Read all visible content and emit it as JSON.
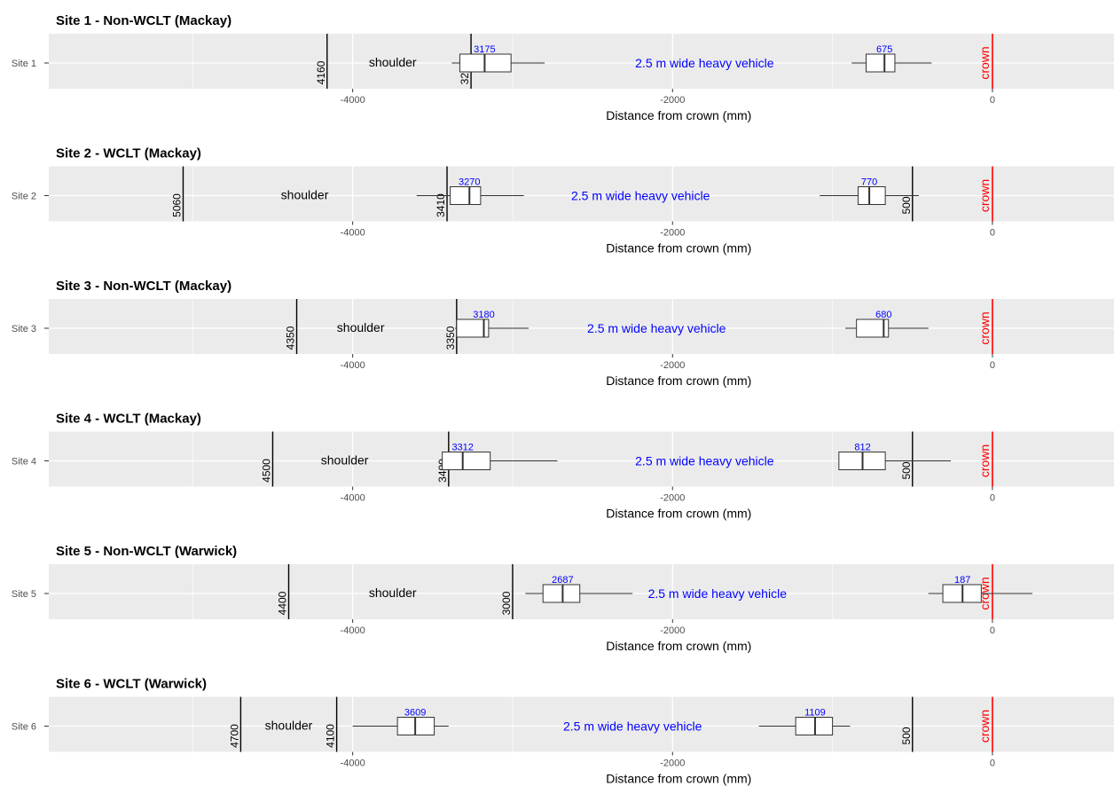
{
  "chart_data": {
    "type": "boxplot",
    "x_axis": {
      "label": "Distance from crown (mm)",
      "ticks": [
        -4000,
        -2000,
        0
      ],
      "tick_labels": [
        "-4000",
        "-2000",
        "0"
      ],
      "xlim": [
        -5900,
        760
      ],
      "grid": true
    },
    "crown_label": "crown",
    "crown_x": 0,
    "shoulder_label": "shoulder",
    "vehicle_label": "2.5 m wide heavy vehicle",
    "colors": {
      "panel": "#ebebeb",
      "grid": "#ffffff",
      "crown": "#ff0000",
      "annotation": "#0000ff",
      "text": "#000000",
      "axis_text": "#4d4d4d"
    },
    "panels": [
      {
        "title": "Site 1 - Non-WCLT (Mackay)",
        "site": "Site 1",
        "boxes": [
          {
            "label": "3175",
            "min": -3380,
            "q1": -3330,
            "median": -3175,
            "q3": -3010,
            "max": -2800
          },
          {
            "label": "675",
            "min": -880,
            "q1": -790,
            "median": -675,
            "q3": -610,
            "max": -380
          }
        ],
        "markers": [
          {
            "x": -4160,
            "label": "4160"
          },
          {
            "x": -3260,
            "label": "3260"
          }
        ],
        "shoulder_x": -3750,
        "vehicle_x": -1800
      },
      {
        "title": "Site 2 - WCLT (Mackay)",
        "site": "Site 2",
        "boxes": [
          {
            "label": "3270",
            "min": -3600,
            "q1": -3390,
            "median": -3270,
            "q3": -3200,
            "max": -2930
          },
          {
            "label": "770",
            "min": -1080,
            "q1": -840,
            "median": -770,
            "q3": -670,
            "max": -460
          }
        ],
        "markers": [
          {
            "x": -5060,
            "label": "5060"
          },
          {
            "x": -3410,
            "label": "3410"
          },
          {
            "x": -500,
            "label": "500"
          }
        ],
        "shoulder_x": -4300,
        "vehicle_x": -2200
      },
      {
        "title": "Site 3 - Non-WCLT (Mackay)",
        "site": "Site 3",
        "boxes": [
          {
            "label": "3180",
            "min": -3360,
            "q1": -3350,
            "median": -3180,
            "q3": -3150,
            "max": -2900
          },
          {
            "label": "680",
            "min": -920,
            "q1": -850,
            "median": -680,
            "q3": -650,
            "max": -400
          }
        ],
        "markers": [
          {
            "x": -4350,
            "label": "4350"
          },
          {
            "x": -3350,
            "label": "3350"
          }
        ],
        "shoulder_x": -3950,
        "vehicle_x": -2100
      },
      {
        "title": "Site 4 - WCLT (Mackay)",
        "site": "Site 4",
        "boxes": [
          {
            "label": "3312",
            "min": -3440,
            "q1": -3440,
            "median": -3312,
            "q3": -3140,
            "max": -2720
          },
          {
            "label": "812",
            "min": -960,
            "q1": -960,
            "median": -812,
            "q3": -670,
            "max": -260
          }
        ],
        "markers": [
          {
            "x": -4500,
            "label": "4500"
          },
          {
            "x": -3400,
            "label": "3400"
          },
          {
            "x": -500,
            "label": "500"
          }
        ],
        "shoulder_x": -4050,
        "vehicle_x": -1800
      },
      {
        "title": "Site 5 - Non-WCLT (Warwick)",
        "site": "Site 5",
        "boxes": [
          {
            "label": "2687",
            "min": -2920,
            "q1": -2810,
            "median": -2687,
            "q3": -2580,
            "max": -2250
          },
          {
            "label": "187",
            "min": -400,
            "q1": -310,
            "median": -187,
            "q3": -70,
            "max": 250
          }
        ],
        "markers": [
          {
            "x": -4400,
            "label": "4400"
          },
          {
            "x": -3000,
            "label": "3000"
          }
        ],
        "shoulder_x": -3750,
        "vehicle_x": -1720
      },
      {
        "title": "Site 6 - WCLT (Warwick)",
        "site": "Site 6",
        "boxes": [
          {
            "label": "3609",
            "min": -4000,
            "q1": -3720,
            "median": -3609,
            "q3": -3490,
            "max": -3400
          },
          {
            "label": "1109",
            "min": -1460,
            "q1": -1230,
            "median": -1109,
            "q3": -1000,
            "max": -890
          }
        ],
        "markers": [
          {
            "x": -4700,
            "label": "4700"
          },
          {
            "x": -4100,
            "label": "4100"
          },
          {
            "x": -500,
            "label": "500"
          }
        ],
        "shoulder_x": -4400,
        "vehicle_x": -2250
      }
    ]
  }
}
